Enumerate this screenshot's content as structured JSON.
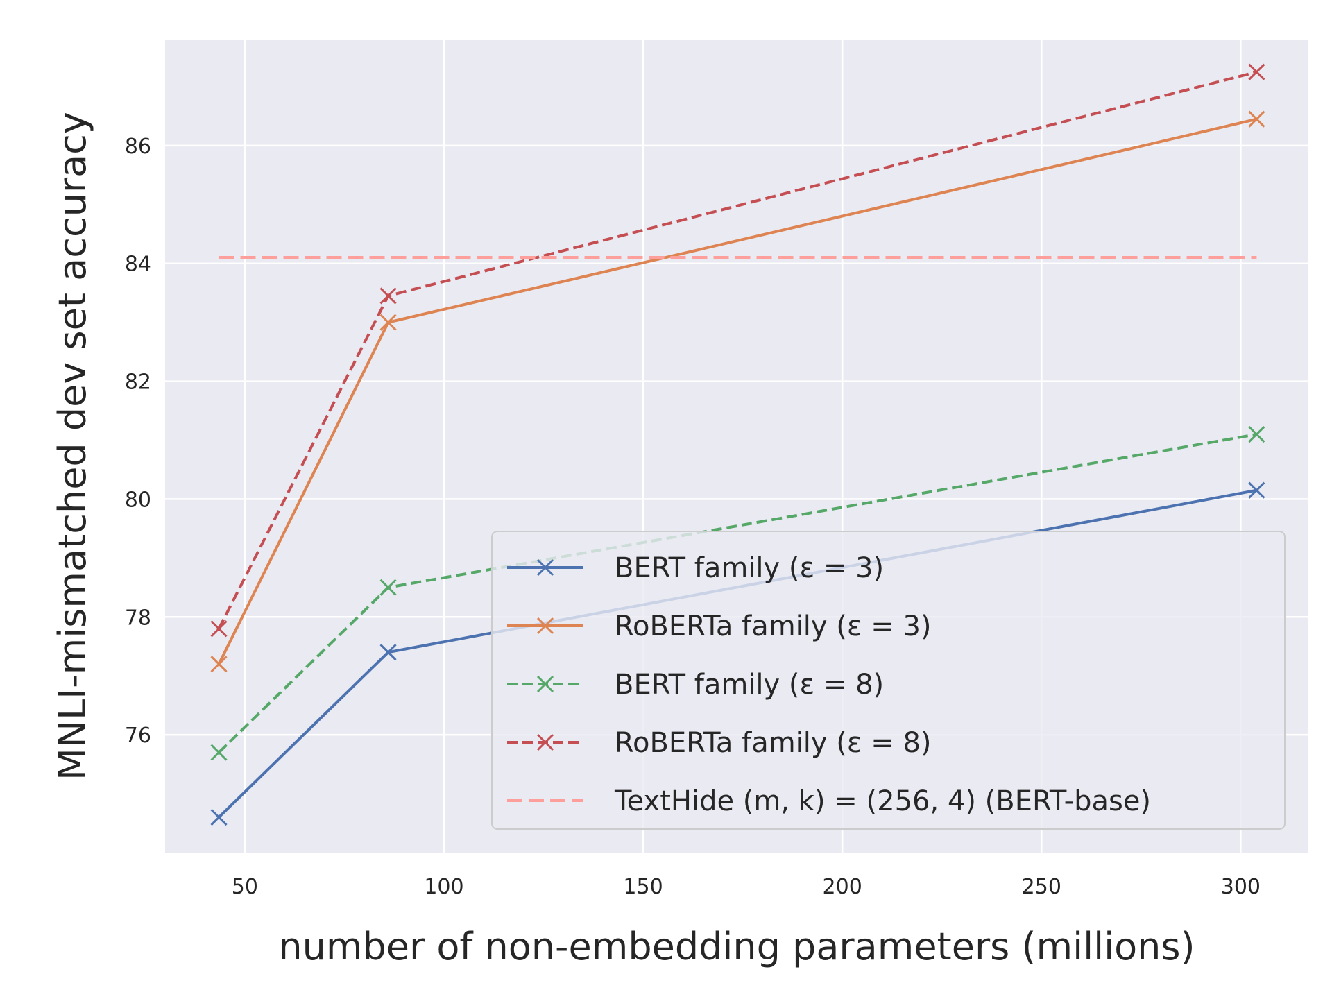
{
  "chart_data": {
    "type": "line",
    "xlabel": "number of non-embedding parameters (millions)",
    "ylabel": "MNLI-mismatched dev set accuracy",
    "xlim": [
      30,
      317
    ],
    "ylim": [
      74.0,
      87.8
    ],
    "xticks": [
      50,
      100,
      150,
      200,
      250,
      300
    ],
    "yticks": [
      76,
      78,
      80,
      82,
      84,
      86
    ],
    "grid": true,
    "background": "#eaeaf2",
    "legend_position": "lower-right",
    "series": [
      {
        "name": "BERT family (ε = 3)",
        "color": "#4c72b0",
        "style": "solid",
        "marker": "x",
        "x": [
          43.5,
          86,
          304
        ],
        "y": [
          74.6,
          77.4,
          80.15
        ]
      },
      {
        "name": "RoBERTa family (ε = 3)",
        "color": "#dd8452",
        "style": "solid",
        "marker": "x",
        "x": [
          43.5,
          86,
          304
        ],
        "y": [
          77.2,
          83.0,
          86.45
        ]
      },
      {
        "name": "BERT family (ε = 8)",
        "color": "#55a868",
        "style": "dashed",
        "marker": "x",
        "x": [
          43.5,
          86,
          304
        ],
        "y": [
          75.7,
          78.5,
          81.1
        ]
      },
      {
        "name": "RoBERTa family (ε = 8)",
        "color": "#c44e52",
        "style": "dashed",
        "marker": "x",
        "x": [
          43.5,
          86,
          304
        ],
        "y": [
          77.8,
          83.45,
          87.25
        ]
      },
      {
        "name": "TextHide (m, k) = (256, 4) (BERT-base)",
        "color": "#ff9f9b",
        "style": "dashed",
        "marker": "none",
        "x": [
          43.5,
          304
        ],
        "y": [
          84.1,
          84.1
        ]
      }
    ]
  }
}
